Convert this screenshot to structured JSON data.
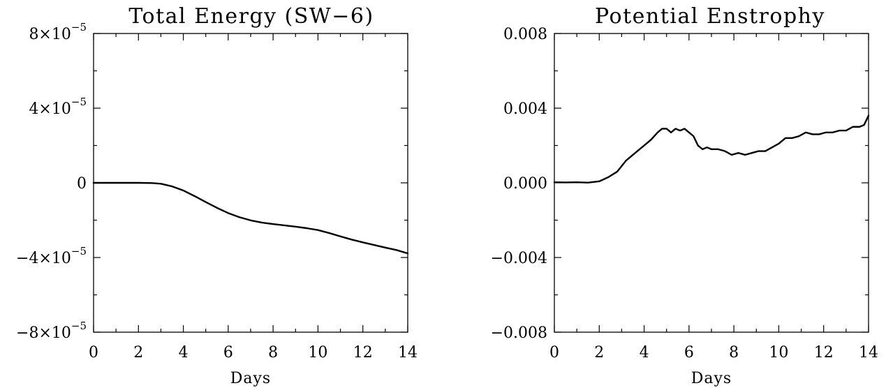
{
  "chart_data": [
    {
      "type": "line",
      "title": "Total Energy (SW−6)",
      "xlabel": "Days",
      "ylabel": "",
      "xlim": [
        0,
        14
      ],
      "ylim": [
        -8e-05,
        8e-05
      ],
      "xticks": [
        0,
        2,
        4,
        6,
        8,
        10,
        12,
        14
      ],
      "xtick_labels": [
        "0",
        "2",
        "4",
        "6",
        "8",
        "10",
        "12",
        "14"
      ],
      "yticks": [
        -8e-05,
        -4e-05,
        0,
        4e-05,
        8e-05
      ],
      "ytick_labels": [
        {
          "mantissa": "−8×10",
          "exponent": "−5"
        },
        {
          "mantissa": "−4×10",
          "exponent": "−5"
        },
        {
          "mantissa": "0",
          "exponent": ""
        },
        {
          "mantissa": "4×10",
          "exponent": "−5"
        },
        {
          "mantissa": "8×10",
          "exponent": "−5"
        }
      ],
      "grid": false,
      "series": [
        {
          "x": [
            0,
            1,
            2,
            2.6,
            3,
            3.5,
            4,
            4.5,
            5,
            5.5,
            6,
            6.5,
            7,
            7.5,
            8,
            8.5,
            9,
            9.5,
            10,
            10.5,
            11,
            11.5,
            12,
            12.5,
            13,
            13.5,
            14
          ],
          "y": [
            0,
            0,
            0,
            -1e-07,
            -5e-07,
            -1.9e-06,
            -4.1e-06,
            -7.1e-06,
            -1.03e-05,
            -1.34e-05,
            -1.62e-05,
            -1.84e-05,
            -2.01e-05,
            -2.13e-05,
            -2.21e-05,
            -2.28e-05,
            -2.35e-05,
            -2.43e-05,
            -2.53e-05,
            -2.69e-05,
            -2.87e-05,
            -3.04e-05,
            -3.19e-05,
            -3.33e-05,
            -3.47e-05,
            -3.6e-05,
            -3.78e-05
          ]
        }
      ]
    },
    {
      "type": "line",
      "title": "Potential Enstrophy",
      "xlabel": "Days",
      "ylabel": "",
      "xlim": [
        0,
        14
      ],
      "ylim": [
        -0.008,
        0.008
      ],
      "xticks": [
        0,
        2,
        4,
        6,
        8,
        10,
        12,
        14
      ],
      "xtick_labels": [
        "0",
        "2",
        "4",
        "6",
        "8",
        "10",
        "12",
        "14"
      ],
      "yticks": [
        -0.008,
        -0.004,
        0,
        0.004,
        0.008
      ],
      "ytick_labels": [
        {
          "mantissa": "−0.008",
          "exponent": ""
        },
        {
          "mantissa": "−0.004",
          "exponent": ""
        },
        {
          "mantissa": "0.000",
          "exponent": ""
        },
        {
          "mantissa": "0.004",
          "exponent": ""
        },
        {
          "mantissa": "0.008",
          "exponent": ""
        }
      ],
      "grid": false,
      "series": [
        {
          "x": [
            0,
            0.5,
            1,
            1.5,
            2,
            2.4,
            2.8,
            3.2,
            3.6,
            4.0,
            4.3,
            4.6,
            4.8,
            5.0,
            5.2,
            5.4,
            5.6,
            5.8,
            6.0,
            6.2,
            6.4,
            6.6,
            6.8,
            7.0,
            7.3,
            7.6,
            7.9,
            8.2,
            8.5,
            8.8,
            9.1,
            9.4,
            9.7,
            10.0,
            10.3,
            10.6,
            10.9,
            11.2,
            11.5,
            11.8,
            12.1,
            12.4,
            12.7,
            13.0,
            13.3,
            13.6,
            13.8,
            14.0
          ],
          "y": [
            3e-05,
            2e-05,
            3e-05,
            1e-05,
            8e-05,
            0.0003,
            0.0006,
            0.0012,
            0.0016,
            0.002,
            0.0023,
            0.0027,
            0.0029,
            0.0029,
            0.0027,
            0.0029,
            0.0028,
            0.0029,
            0.0027,
            0.0025,
            0.002,
            0.0018,
            0.0019,
            0.0018,
            0.0018,
            0.0017,
            0.0015,
            0.0016,
            0.0015,
            0.0016,
            0.0017,
            0.0017,
            0.0019,
            0.0021,
            0.0024,
            0.0024,
            0.0025,
            0.0027,
            0.0026,
            0.0026,
            0.0027,
            0.0027,
            0.0028,
            0.0028,
            0.003,
            0.003,
            0.0031,
            0.0036
          ]
        }
      ]
    }
  ]
}
